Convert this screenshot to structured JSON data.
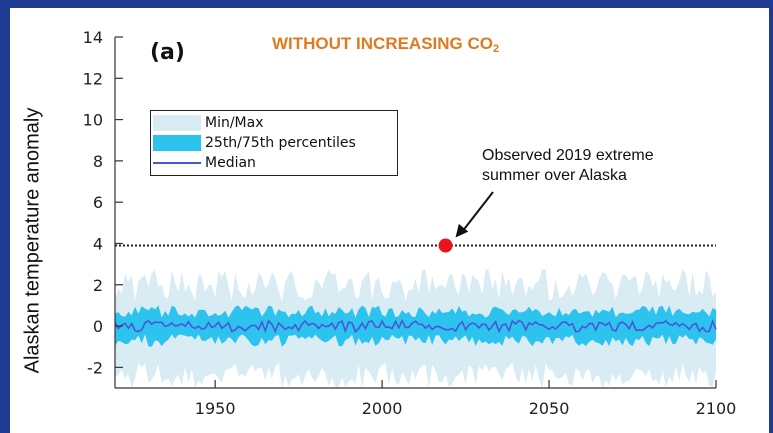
{
  "chart_data": {
    "type": "area",
    "title": "WITHOUT INCREASING CO",
    "title_subscript": "2",
    "panel_label": "(a)",
    "ylabel": "Alaskan temperature anomaly",
    "xlabel": "",
    "xlim": [
      1920,
      2100
    ],
    "ylim": [
      -3,
      14
    ],
    "x_ticks": [
      1950,
      2000,
      2050,
      2100
    ],
    "y_ticks": [
      -2,
      0,
      2,
      4,
      6,
      8,
      10,
      12,
      14
    ],
    "legend": {
      "placement": "upper-left",
      "entries": [
        "Min/Max",
        "25th/75th percentiles",
        "Median"
      ]
    },
    "series": [
      {
        "name": "Min/Max",
        "kind": "band",
        "lower_mean": -2.4,
        "upper_mean": 2.0,
        "color": "#d9ecf3"
      },
      {
        "name": "25th/75th percentiles",
        "kind": "band",
        "lower_mean": -0.7,
        "upper_mean": 0.7,
        "color": "#2dc3ef"
      },
      {
        "name": "Median",
        "kind": "line",
        "mean": 0.0,
        "color": "#4a55d8"
      }
    ],
    "reference_line": {
      "y": 3.9,
      "style": "dotted",
      "color": "#222222"
    },
    "observed_point": {
      "x": 2019,
      "y": 3.9,
      "color": "#e8141c"
    },
    "annotation": {
      "lines": [
        "Observed 2019 extreme",
        "summer over Alaska"
      ]
    }
  }
}
